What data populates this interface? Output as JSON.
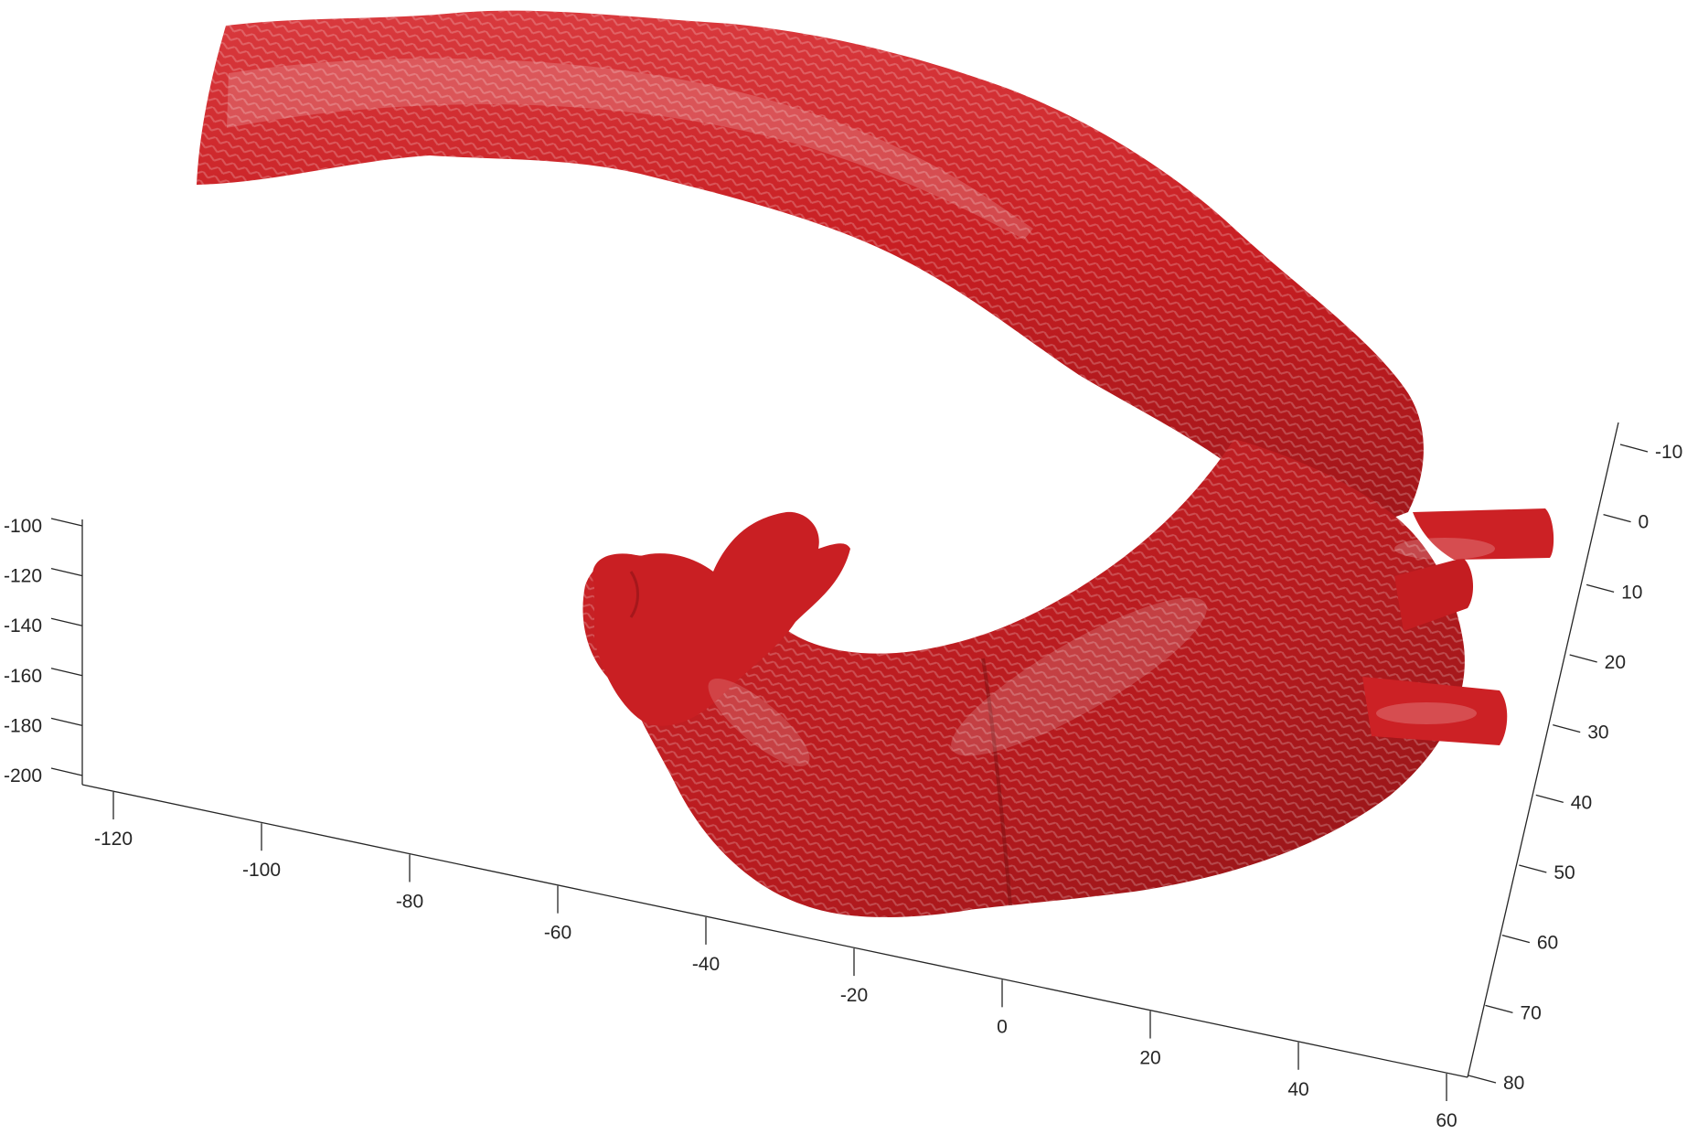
{
  "figure": {
    "type": "3d-surface-render",
    "subject": "aorta",
    "surface_color": "#c81e22",
    "background_color": "#ffffff",
    "axis_color": "#262626",
    "grid": false
  },
  "axes": {
    "x": {
      "ticks": [
        "-120",
        "-100",
        "-80",
        "-60",
        "-40",
        "-20",
        "0",
        "20",
        "40",
        "60"
      ]
    },
    "y": {
      "ticks": [
        "-10",
        "0",
        "10",
        "20",
        "30",
        "40",
        "50",
        "60",
        "70",
        "80"
      ]
    },
    "z": {
      "ticks": [
        "-100",
        "-120",
        "-140",
        "-160",
        "-180",
        "-200"
      ]
    }
  }
}
